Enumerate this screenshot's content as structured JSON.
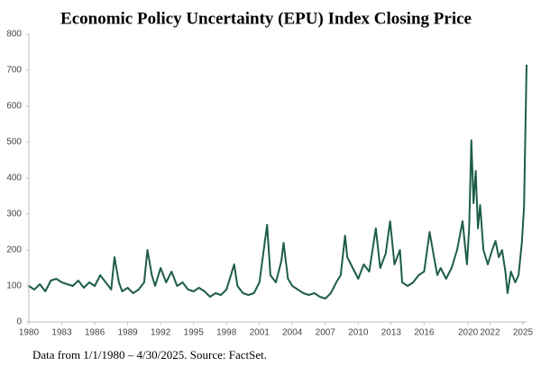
{
  "chart_data": {
    "type": "line",
    "title": "Economic Policy Uncertainty (EPU) Index Closing Price",
    "source": "Data from 1/1/1980 – 4/30/2025. Source: FactSet.",
    "color": "#1e5e45",
    "x": [
      1980,
      1980.5,
      1981,
      1981.5,
      1982,
      1982.5,
      1983,
      1983.5,
      1984,
      1984.5,
      1985,
      1985.5,
      1986,
      1986.5,
      1987,
      1987.5,
      1987.8,
      1988.2,
      1988.5,
      1989,
      1989.5,
      1990,
      1990.5,
      1990.8,
      1991.2,
      1991.5,
      1992,
      1992.5,
      1993,
      1993.5,
      1994,
      1994.5,
      1995,
      1995.5,
      1996,
      1996.5,
      1997,
      1997.5,
      1998,
      1998.7,
      1999,
      1999.5,
      2000,
      2000.5,
      2001,
      2001.7,
      2002,
      2002.5,
      2003,
      2003.2,
      2003.6,
      2004,
      2004.5,
      2005,
      2005.5,
      2006,
      2006.5,
      2007,
      2007.5,
      2008,
      2008.4,
      2008.8,
      2009,
      2009.5,
      2010,
      2010.5,
      2011,
      2011.6,
      2012,
      2012.5,
      2012.9,
      2013.3,
      2013.8,
      2014,
      2014.5,
      2015,
      2015.5,
      2016,
      2016.5,
      2016.9,
      2017.2,
      2017.5,
      2018,
      2018.5,
      2019,
      2019.5,
      2019.9,
      2020.1,
      2020.3,
      2020.5,
      2020.7,
      2020.9,
      2021.1,
      2021.4,
      2021.8,
      2022.2,
      2022.5,
      2022.8,
      2023.1,
      2023.4,
      2023.6,
      2023.9,
      2024.3,
      2024.6,
      2024.9,
      2025.1,
      2025.33
    ],
    "values": [
      100,
      90,
      105,
      85,
      115,
      120,
      110,
      105,
      100,
      115,
      95,
      110,
      100,
      130,
      110,
      90,
      180,
      110,
      85,
      95,
      80,
      90,
      110,
      200,
      130,
      100,
      150,
      110,
      140,
      100,
      110,
      90,
      85,
      95,
      85,
      70,
      80,
      75,
      90,
      160,
      100,
      80,
      75,
      80,
      110,
      270,
      130,
      110,
      170,
      220,
      120,
      100,
      90,
      80,
      75,
      80,
      70,
      65,
      80,
      110,
      130,
      240,
      180,
      150,
      120,
      160,
      140,
      260,
      150,
      190,
      280,
      160,
      200,
      110,
      100,
      110,
      130,
      140,
      250,
      180,
      130,
      150,
      120,
      150,
      200,
      280,
      160,
      260,
      505,
      330,
      420,
      260,
      325,
      200,
      160,
      200,
      225,
      180,
      200,
      140,
      80,
      140,
      110,
      130,
      220,
      320,
      715
    ],
    "xlim": [
      1980,
      2025.33
    ],
    "xticks": [
      1980,
      1983,
      1986,
      1989,
      1992,
      1995,
      1998,
      2001,
      2004,
      2007,
      2010,
      2013,
      2016,
      2020,
      2022,
      2025
    ],
    "ylim": [
      0,
      800
    ],
    "yticks": [
      0,
      100,
      200,
      300,
      400,
      500,
      600,
      700,
      800
    ]
  }
}
